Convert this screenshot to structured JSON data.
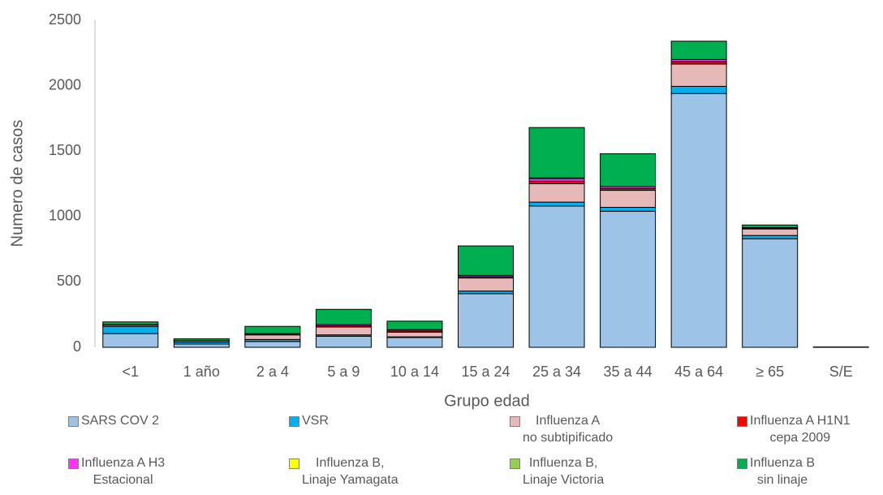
{
  "chart_data": {
    "type": "stacked-bar",
    "x_label": "Grupo edad",
    "y_label": "Numero de casos",
    "categories": [
      "<1",
      "1 año",
      "2 a 4",
      "5 a 9",
      "10 a 14",
      "15 a 24",
      "25 a 34",
      "35 a 44",
      "45 a 64",
      "≥ 65",
      "S/E"
    ],
    "series": [
      {
        "name": "SARS COV 2",
        "color": "#9dc3e6",
        "values": [
          105,
          25,
          45,
          85,
          75,
          410,
          1080,
          1040,
          1940,
          830,
          3
        ]
      },
      {
        "name": "VSR",
        "color": "#00b0f0",
        "values": [
          55,
          15,
          15,
          10,
          5,
          20,
          30,
          30,
          55,
          25,
          0
        ]
      },
      {
        "name": "Influenza A\nno subtipificado",
        "color": "#e6b9b8",
        "values": [
          10,
          10,
          35,
          60,
          35,
          100,
          140,
          130,
          170,
          50,
          0
        ]
      },
      {
        "name": "Influenza A H1N1\ncepa 2009",
        "color": "#ff0000",
        "values": [
          2,
          2,
          5,
          10,
          10,
          10,
          20,
          15,
          20,
          5,
          0
        ]
      },
      {
        "name": "Influenza A H3\nEstacional",
        "color": "#ff33ff",
        "values": [
          2,
          1,
          5,
          10,
          10,
          10,
          20,
          15,
          15,
          5,
          0
        ]
      },
      {
        "name": "Influenza B,\nLinaje Yamagata",
        "color": "#ffff00",
        "values": [
          0,
          0,
          0,
          0,
          0,
          0,
          0,
          0,
          0,
          0,
          0
        ]
      },
      {
        "name": "Influenza B,\nLinaje Victoria",
        "color": "#92d050",
        "values": [
          0,
          0,
          0,
          0,
          0,
          0,
          5,
          0,
          0,
          0,
          0
        ]
      },
      {
        "name": "Influenza B\nsin linaje",
        "color": "#00b050",
        "values": [
          20,
          12,
          55,
          115,
          65,
          225,
          385,
          250,
          140,
          20,
          0
        ]
      }
    ],
    "ylim": [
      0,
      2500
    ],
    "yticks": [
      0,
      500,
      1000,
      1500,
      2000,
      2500
    ],
    "grid": false
  }
}
